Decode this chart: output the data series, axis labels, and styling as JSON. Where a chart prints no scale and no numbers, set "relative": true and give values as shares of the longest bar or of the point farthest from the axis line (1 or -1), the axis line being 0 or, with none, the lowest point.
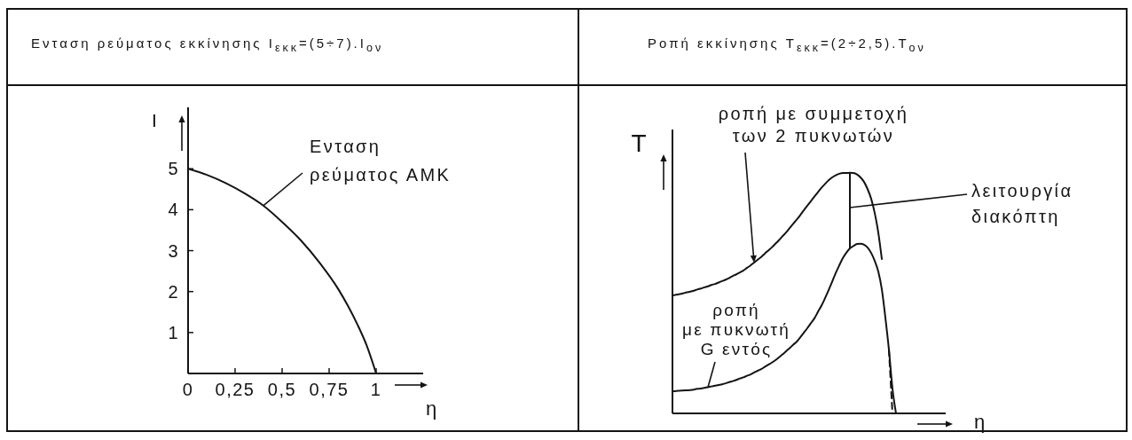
{
  "chart_data": [
    {
      "type": "line",
      "title": "Ενταση ρεύματος εκκίνησης I$_{εκκ}$=(5÷7).I$_{ον}$",
      "xlabel": "η",
      "ylabel": "I",
      "x": [
        0,
        0.1,
        0.2,
        0.3,
        0.4,
        0.5,
        0.6,
        0.7,
        0.8,
        0.85,
        0.9,
        0.95,
        1
      ],
      "series": [
        {
          "name": "Ενταση ρεύματος ΑΜΚ",
          "color": "#141414",
          "values": [
            5,
            4.85,
            4.65,
            4.4,
            4.1,
            3.7,
            3.25,
            2.7,
            2.05,
            1.65,
            1.2,
            0.68,
            0
          ]
        }
      ],
      "xlim": [
        0,
        1.25
      ],
      "ylim": [
        0,
        6.5
      ],
      "xticks": [
        0,
        {
          "value": 0.25,
          "label": "0,25"
        },
        {
          "value": 0.5,
          "label": "0,5"
        },
        {
          "value": 0.75,
          "label": "0,75"
        },
        1
      ],
      "yticks": [
        1,
        2,
        3,
        4,
        5
      ]
    },
    {
      "type": "line",
      "title": "Ροπή εκκίνησης T$_{εκκ}$=(2÷2,5).T$_{ον}$",
      "xlabel": "η",
      "ylabel": "T",
      "relative": true,
      "categories": [
        null,
        null,
        null,
        null,
        null,
        null,
        null,
        null,
        null,
        null,
        null,
        null,
        null,
        null,
        null,
        null,
        null,
        null,
        null,
        null,
        null,
        null,
        null,
        null,
        null,
        null,
        null,
        null,
        null,
        null,
        null,
        null,
        null,
        null,
        null,
        null,
        null,
        null,
        null,
        null,
        null,
        null,
        null,
        null,
        null,
        null,
        null,
        null,
        null,
        null,
        null,
        null,
        null,
        null,
        null,
        null,
        null,
        null,
        null,
        null,
        null,
        null,
        null,
        null,
        null,
        null,
        null,
        null,
        null,
        null,
        null,
        null,
        null,
        null,
        null,
        null,
        null,
        null
      ],
      "series": [
        {
          "name": "ροπή με συμμετοχή των 2 πυκνωτών",
          "color": "#141414",
          "values": [
            0.49,
            0.493,
            0.496,
            0.499,
            0.503,
            0.506,
            0.51,
            0.515,
            0.519,
            0.524,
            0.528,
            0.534,
            0.538,
            0.544,
            0.55,
            0.556,
            0.563,
            0.571,
            0.578,
            0.586,
            0.594,
            0.605,
            0.615,
            0.627,
            0.639,
            0.65,
            0.664,
            0.677,
            0.69,
            0.705,
            0.72,
            0.736,
            0.752,
            0.77,
            0.788,
            0.805,
            0.824,
            0.844,
            0.863,
            0.882,
            0.901,
            0.92,
            0.938,
            0.954,
            0.969,
            0.981,
            0.99,
            0.996,
            0.999,
            0.999,
            1,
            0.999,
            0.993,
            0.981,
            0.962,
            0.932,
            0.892,
            0.833,
            0.752,
            0.642,
            null,
            null,
            null,
            null,
            null,
            null,
            null,
            null,
            null,
            null,
            null,
            null,
            null,
            null,
            null,
            null,
            null,
            null
          ]
        },
        {
          "name": "ροπή με πυκνωτή G εντός",
          "color": "#141414",
          "values": [
            0.091,
            0.093,
            0.094,
            0.095,
            0.096,
            0.097,
            0.099,
            0.102,
            0.103,
            0.106,
            0.109,
            0.112,
            0.115,
            0.118,
            0.121,
            0.125,
            0.13,
            0.134,
            0.139,
            0.145,
            0.15,
            0.156,
            0.162,
            0.17,
            0.177,
            0.184,
            0.193,
            0.202,
            0.211,
            0.221,
            0.233,
            0.245,
            0.258,
            0.271,
            0.285,
            0.298,
            0.316,
            0.335,
            0.354,
            0.375,
            0.395,
            0.422,
            0.448,
            0.479,
            0.512,
            0.547,
            0.583,
            0.615,
            0.645,
            0.668,
            0.686,
            0.696,
            0.704,
            0.705,
            0.701,
            0.689,
            0.667,
            0.634,
            0.59,
            0.516,
            0.398,
            0.265,
            0.103,
            0,
            null,
            null,
            null,
            null,
            null,
            null,
            null,
            null,
            null,
            null,
            null,
            null,
            null,
            null
          ]
        },
        {
          "color": "#141414",
          "line_style": "dashed",
          "values": [
            null,
            null,
            null,
            null,
            null,
            null,
            null,
            null,
            null,
            null,
            null,
            null,
            null,
            null,
            null,
            null,
            null,
            null,
            null,
            null,
            null,
            null,
            null,
            null,
            null,
            null,
            null,
            null,
            null,
            null,
            null,
            null,
            null,
            null,
            null,
            null,
            null,
            null,
            null,
            null,
            null,
            null,
            null,
            null,
            null,
            null,
            null,
            null,
            null,
            null,
            null,
            null,
            null,
            null,
            null,
            null,
            null,
            null,
            null,
            null,
            null,
            0.265,
            0,
            null,
            null,
            null,
            null,
            null,
            null,
            null,
            null,
            null,
            null,
            null,
            null,
            null,
            null,
            null
          ]
        }
      ],
      "annotations": [
        "λειτουργία διακόπτη"
      ]
    }
  ]
}
